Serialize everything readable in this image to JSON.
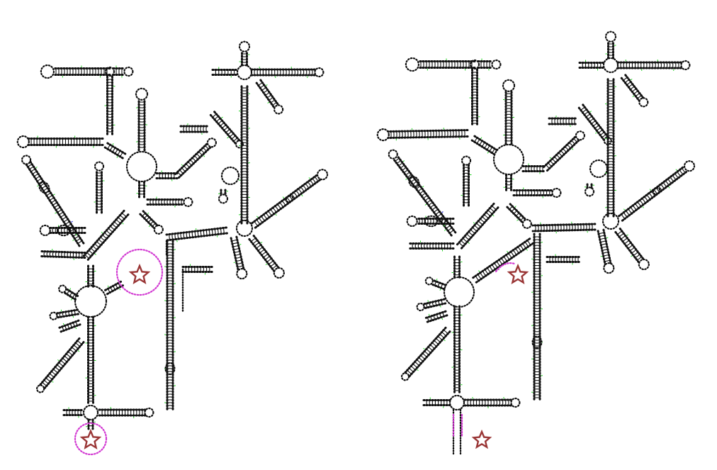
{
  "figure": {
    "panels": [
      {
        "id": "left-structure",
        "highlight_circles": 2,
        "stars": 2
      },
      {
        "id": "right-structure",
        "highlight_circles": 0,
        "stars": 2
      }
    ],
    "colors": {
      "backbone": "#111111",
      "pair_tick_green": "#2bd42b",
      "pair_tick_blue": "#3a3adc",
      "highlight": "#d23bd2",
      "star": "#9a3636"
    }
  }
}
